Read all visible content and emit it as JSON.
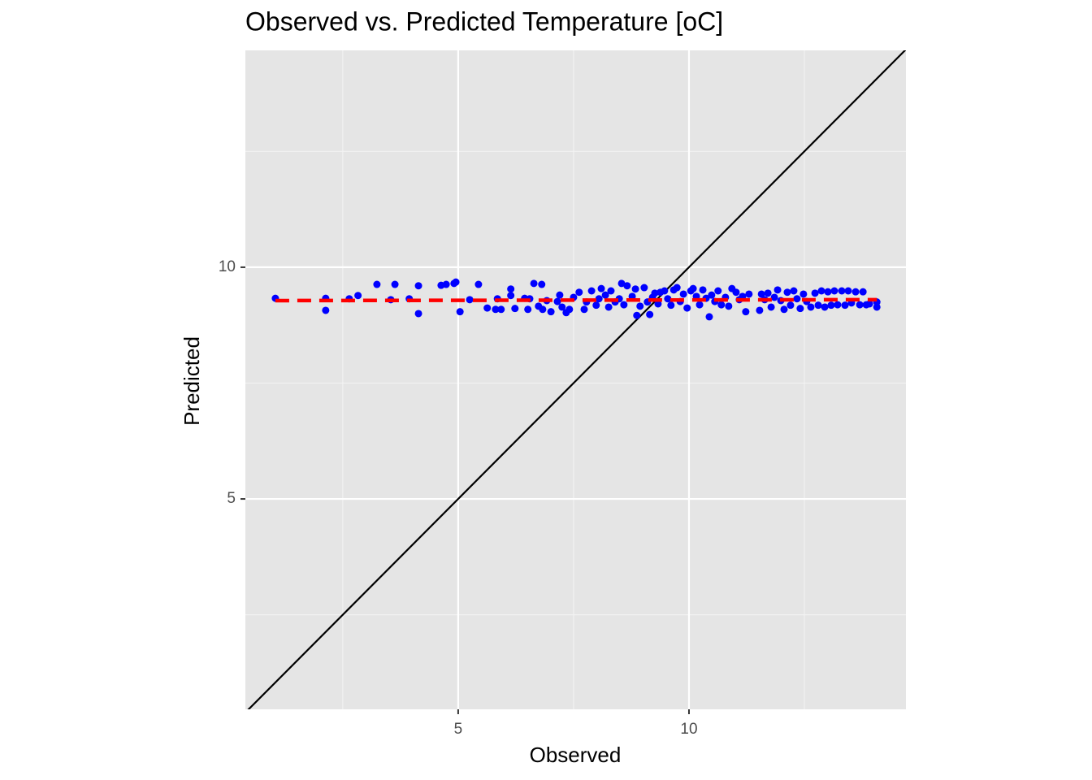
{
  "chart_data": {
    "type": "scatter",
    "title": "Observed vs. Predicted Temperature [oC]",
    "x_label": "Observed",
    "y_label": "Predicted",
    "xlim": [
      0.39,
      14.7
    ],
    "ylim": [
      0.46,
      14.68
    ],
    "xticks": [
      5,
      10
    ],
    "yticks": [
      5,
      10
    ],
    "xminorticks": [
      2.5,
      7.5,
      12.5
    ],
    "yminorticks": [
      2.5,
      7.5,
      12.5
    ],
    "grid": true,
    "color": "#0000ff",
    "x": [
      1.04,
      2.13,
      2.13,
      2.64,
      2.83,
      3.24,
      3.54,
      3.63,
      3.94,
      4.14,
      4.14,
      4.63,
      4.74,
      4.91,
      4.95,
      5.04,
      5.25,
      5.44,
      5.63,
      5.81,
      5.93,
      5.85,
      6.14,
      6.14,
      6.23,
      6.44,
      6.51,
      6.55,
      6.64,
      6.81,
      6.74,
      6.83,
      6.92,
      7.01,
      7.15,
      7.2,
      7.25,
      7.34,
      7.41,
      7.5,
      7.62,
      7.73,
      7.78,
      7.89,
      7.99,
      8.05,
      8.1,
      8.19,
      8.26,
      8.31,
      8.4,
      8.49,
      8.54,
      8.59,
      8.66,
      8.77,
      8.84,
      8.87,
      8.94,
      9.03,
      9.1,
      9.15,
      9.21,
      9.26,
      9.33,
      9.38,
      9.47,
      9.54,
      9.61,
      9.67,
      9.74,
      9.81,
      9.88,
      9.96,
      10.04,
      10.09,
      10.16,
      10.23,
      10.3,
      10.37,
      10.44,
      10.49,
      10.56,
      10.63,
      10.7,
      10.79,
      10.86,
      10.93,
      11.02,
      11.09,
      11.16,
      11.23,
      11.3,
      11.53,
      11.57,
      11.64,
      11.71,
      11.78,
      11.85,
      11.92,
      11.99,
      12.06,
      12.13,
      12.2,
      12.27,
      12.34,
      12.41,
      12.48,
      12.55,
      12.64,
      12.73,
      12.8,
      12.87,
      12.94,
      13.01,
      13.08,
      13.15,
      13.22,
      13.31,
      13.38,
      13.45,
      13.52,
      13.61,
      13.7,
      13.77,
      13.84,
      13.91,
      14.07,
      14.07
    ],
    "y": [
      9.33,
      9.33,
      9.07,
      9.32,
      9.39,
      9.63,
      9.3,
      9.63,
      9.32,
      9.6,
      9.0,
      9.61,
      9.63,
      9.65,
      9.68,
      9.04,
      9.3,
      9.63,
      9.12,
      9.09,
      9.09,
      9.32,
      9.53,
      9.39,
      9.11,
      9.33,
      9.09,
      9.32,
      9.65,
      9.63,
      9.16,
      9.09,
      9.28,
      9.04,
      9.26,
      9.4,
      9.14,
      9.02,
      9.09,
      9.35,
      9.46,
      9.09,
      9.25,
      9.49,
      9.18,
      9.32,
      9.54,
      9.4,
      9.14,
      9.49,
      9.25,
      9.32,
      9.65,
      9.19,
      9.6,
      9.37,
      9.53,
      8.96,
      9.16,
      9.56,
      9.25,
      8.98,
      9.35,
      9.44,
      9.21,
      9.46,
      9.49,
      9.32,
      9.18,
      9.51,
      9.56,
      9.26,
      9.42,
      9.12,
      9.49,
      9.54,
      9.37,
      9.19,
      9.51,
      9.33,
      8.93,
      9.4,
      9.26,
      9.49,
      9.19,
      9.35,
      9.16,
      9.54,
      9.46,
      9.3,
      9.37,
      9.04,
      9.42,
      9.07,
      9.42,
      9.3,
      9.44,
      9.14,
      9.35,
      9.51,
      9.28,
      9.09,
      9.46,
      9.18,
      9.49,
      9.32,
      9.11,
      9.42,
      9.26,
      9.14,
      9.44,
      9.18,
      9.49,
      9.14,
      9.47,
      9.18,
      9.49,
      9.19,
      9.49,
      9.18,
      9.49,
      9.23,
      9.47,
      9.19,
      9.47,
      9.19,
      9.21,
      9.14,
      9.25
    ],
    "fit": {
      "color": "#ff0000",
      "x": [
        1.04,
        14.07
      ],
      "y": [
        9.28,
        9.3
      ]
    },
    "reference_line": {
      "slope": 1,
      "intercept": 0,
      "color": "#000000"
    }
  }
}
